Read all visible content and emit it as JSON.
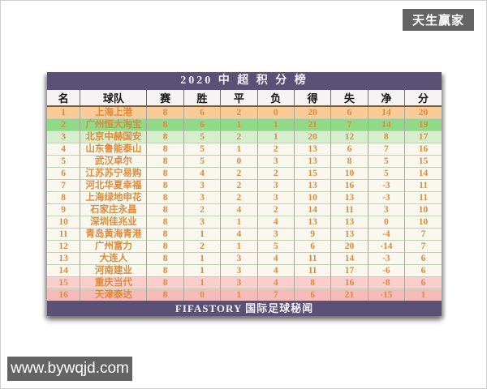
{
  "watermarks": {
    "top_right": "天生赢家",
    "bottom_left": "www.bywqjd.com"
  },
  "chart_data": {
    "type": "table",
    "title": "2020 中 超 积 分 榜",
    "footer": "FIFASTORY  国际足球秘闻",
    "columns": [
      "名",
      "球队",
      "赛",
      "胜",
      "平",
      "负",
      "得",
      "失",
      "净",
      "分"
    ],
    "column_meanings": [
      "rank",
      "team",
      "played",
      "wins",
      "draws",
      "losses",
      "goals_for",
      "goals_against",
      "goal_diff",
      "points"
    ],
    "rows": [
      {
        "rank": 1,
        "team": "上海上港",
        "played": 8,
        "win": 6,
        "draw": 2,
        "loss": 0,
        "gf": 20,
        "ga": 6,
        "gd": 14,
        "pts": 20,
        "tone": "gold"
      },
      {
        "rank": 2,
        "team": "广州恒大淘宝",
        "played": 8,
        "win": 6,
        "draw": 1,
        "loss": 1,
        "gf": 21,
        "ga": 7,
        "gd": 14,
        "pts": 19,
        "tone": "green"
      },
      {
        "rank": 3,
        "team": "北京中赫国安",
        "played": 8,
        "win": 5,
        "draw": 2,
        "loss": 1,
        "gf": 20,
        "ga": 12,
        "gd": 8,
        "pts": 17,
        "tone": "lightgreen"
      },
      {
        "rank": 4,
        "team": "山东鲁能泰山",
        "played": 8,
        "win": 5,
        "draw": 1,
        "loss": 2,
        "gf": 13,
        "ga": 6,
        "gd": 7,
        "pts": 16,
        "tone": "cream"
      },
      {
        "rank": 5,
        "team": "武汉卓尔",
        "played": 8,
        "win": 5,
        "draw": 0,
        "loss": 3,
        "gf": 13,
        "ga": 8,
        "gd": 5,
        "pts": 15,
        "tone": "cream"
      },
      {
        "rank": 6,
        "team": "江苏苏宁易购",
        "played": 8,
        "win": 4,
        "draw": 2,
        "loss": 2,
        "gf": 15,
        "ga": 10,
        "gd": 5,
        "pts": 14,
        "tone": "cream"
      },
      {
        "rank": 7,
        "team": "河北华夏幸福",
        "played": 8,
        "win": 3,
        "draw": 2,
        "loss": 3,
        "gf": 13,
        "ga": 16,
        "gd": -3,
        "pts": 11,
        "tone": "cream"
      },
      {
        "rank": 8,
        "team": "上海绿地申花",
        "played": 8,
        "win": 3,
        "draw": 2,
        "loss": 3,
        "gf": 10,
        "ga": 13,
        "gd": -3,
        "pts": 11,
        "tone": "cream"
      },
      {
        "rank": 9,
        "team": "石家庄永昌",
        "played": 8,
        "win": 2,
        "draw": 4,
        "loss": 2,
        "gf": 14,
        "ga": 11,
        "gd": 3,
        "pts": 10,
        "tone": "cream"
      },
      {
        "rank": 10,
        "team": "深圳佳兆业",
        "played": 8,
        "win": 3,
        "draw": 1,
        "loss": 4,
        "gf": 13,
        "ga": 13,
        "gd": 0,
        "pts": 10,
        "tone": "cream"
      },
      {
        "rank": 11,
        "team": "青岛黄海青港",
        "played": 8,
        "win": 1,
        "draw": 4,
        "loss": 3,
        "gf": 9,
        "ga": 13,
        "gd": -4,
        "pts": 7,
        "tone": "cream"
      },
      {
        "rank": 12,
        "team": "广州富力",
        "played": 8,
        "win": 2,
        "draw": 1,
        "loss": 5,
        "gf": 6,
        "ga": 20,
        "gd": -14,
        "pts": 7,
        "tone": "cream"
      },
      {
        "rank": 13,
        "team": "大连人",
        "played": 8,
        "win": 1,
        "draw": 3,
        "loss": 4,
        "gf": 11,
        "ga": 14,
        "gd": -3,
        "pts": 6,
        "tone": "cream"
      },
      {
        "rank": 14,
        "team": "河南建业",
        "played": 8,
        "win": 1,
        "draw": 3,
        "loss": 4,
        "gf": 11,
        "ga": 17,
        "gd": -6,
        "pts": 6,
        "tone": "cream"
      },
      {
        "rank": 15,
        "team": "重庆当代",
        "played": 8,
        "win": 1,
        "draw": 3,
        "loss": 4,
        "gf": 8,
        "ga": 16,
        "gd": -8,
        "pts": 6,
        "tone": "pink"
      },
      {
        "rank": 16,
        "team": "天津泰达",
        "played": 8,
        "win": 0,
        "draw": 1,
        "loss": 7,
        "gf": 6,
        "ga": 21,
        "gd": -15,
        "pts": 1,
        "tone": "pink2"
      }
    ],
    "layout_hints": {
      "row_tone_colors": {
        "gold": "#f9cb97",
        "green": "#90d987",
        "lightgreen": "#d6eecd",
        "cream": "#faf7ee",
        "pink": "#f9cecc",
        "pink2": "#f6bbba"
      },
      "title_bar_color": "#5b5075",
      "data_text_color": "#dd8a3c",
      "watermark_badge_color": "#646464"
    }
  }
}
